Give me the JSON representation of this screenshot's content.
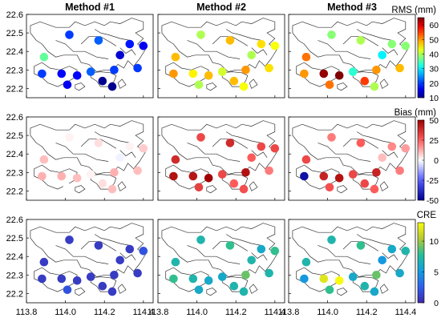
{
  "column_titles": [
    "Method #1",
    "Method #2",
    "Method #3"
  ],
  "rows": [
    {
      "label": "RMS (mm)",
      "colormap": "jet",
      "cmin": 10,
      "cmax": 65,
      "ticks": [
        10,
        20,
        30,
        40,
        50,
        60
      ],
      "tick_labels": [
        "10",
        "20",
        "30",
        "40",
        "50",
        "60"
      ]
    },
    {
      "label": "Bias (mm)",
      "colormap": "bwr",
      "cmin": -50,
      "cmax": 50,
      "ticks": [
        -50,
        -25,
        0,
        25,
        50
      ],
      "tick_labels": [
        "-50",
        "-25",
        "0",
        "25",
        "50"
      ]
    },
    {
      "label": "CRE",
      "colormap": "parula",
      "cmin": 0,
      "cmax": 13,
      "ticks": [
        0,
        5,
        10
      ],
      "tick_labels": [
        "0",
        "5",
        "10"
      ]
    }
  ],
  "colors": {
    "map_outline": "#333333",
    "axis": "#000000"
  },
  "chart_data": {
    "type": "scatter",
    "xlabel": "",
    "ylabel": "",
    "xlim": [
      113.8,
      114.45
    ],
    "ylim": [
      22.15,
      22.6
    ],
    "xticks": [
      "113.8",
      "114.0",
      "114.2",
      "114.4"
    ],
    "yticks": [
      "22.2",
      "22.3",
      "22.4",
      "22.5",
      "22.6"
    ],
    "stations": [
      {
        "lon": 113.89,
        "lat": 22.37
      },
      {
        "lon": 114.02,
        "lat": 22.49
      },
      {
        "lon": 114.17,
        "lat": 22.46
      },
      {
        "lon": 114.33,
        "lat": 22.44
      },
      {
        "lon": 114.28,
        "lat": 22.38
      },
      {
        "lon": 114.4,
        "lat": 22.43
      },
      {
        "lon": 113.88,
        "lat": 22.28
      },
      {
        "lon": 113.98,
        "lat": 22.28
      },
      {
        "lon": 114.06,
        "lat": 22.27
      },
      {
        "lon": 114.19,
        "lat": 22.24
      },
      {
        "lon": 114.13,
        "lat": 22.29
      },
      {
        "lon": 114.25,
        "lat": 22.3
      },
      {
        "lon": 114.37,
        "lat": 22.31
      },
      {
        "lon": 114.01,
        "lat": 22.22
      },
      {
        "lon": 114.24,
        "lat": 22.21
      }
    ],
    "series": [
      {
        "values": [
          36,
          20,
          22,
          18,
          14,
          16,
          20,
          17,
          17,
          10,
          22,
          20,
          20,
          16,
          10
        ]
      },
      {
        "values": [
          48,
          40,
          48,
          46,
          40,
          44,
          50,
          45,
          48,
          48,
          42,
          50,
          46,
          40,
          44
        ]
      },
      {
        "values": [
          52,
          38,
          40,
          38,
          30,
          38,
          50,
          64,
          65,
          55,
          33,
          50,
          48,
          52,
          40
        ]
      },
      {
        "values": [
          10,
          2,
          5,
          2,
          -2,
          8,
          12,
          12,
          10,
          5,
          2,
          12,
          10,
          0,
          10
        ]
      },
      {
        "values": [
          38,
          30,
          38,
          30,
          25,
          30,
          45,
          44,
          50,
          25,
          30,
          45,
          20,
          32,
          28
        ]
      },
      {
        "values": [
          30,
          20,
          25,
          18,
          10,
          15,
          -45,
          40,
          45,
          30,
          30,
          40,
          20,
          28,
          25
        ]
      },
      {
        "values": [
          1,
          1,
          1,
          1,
          1,
          2,
          1,
          1,
          1,
          1,
          1,
          1,
          1,
          2,
          1
        ]
      },
      {
        "values": [
          7,
          7,
          8,
          6,
          7,
          8,
          8,
          7,
          6,
          7,
          6,
          9,
          7,
          6,
          7
        ]
      },
      {
        "values": [
          7,
          7,
          8,
          6,
          5,
          7,
          5,
          12,
          13,
          7,
          6,
          9,
          6,
          8,
          6
        ]
      }
    ]
  }
}
